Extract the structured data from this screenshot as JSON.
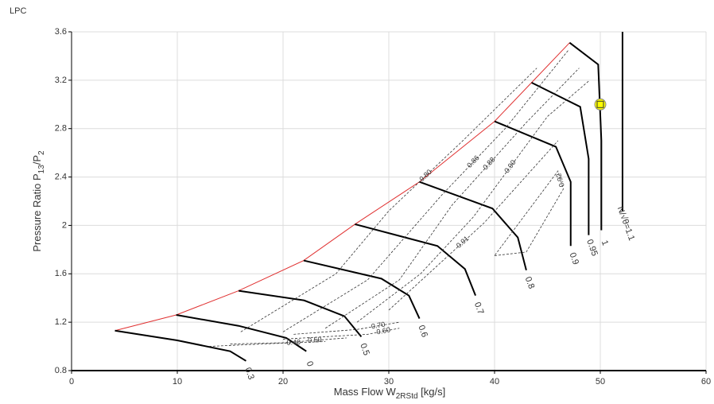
{
  "chart_data": {
    "type": "line",
    "title": "LPC",
    "x_label": [
      "Mass Flow W",
      "2RStd",
      " [kg/s]"
    ],
    "y_label": [
      "Pressure Ratio P",
      "13",
      "/P",
      "2"
    ],
    "xlim": [
      0,
      60
    ],
    "ylim": [
      0.8,
      3.6
    ],
    "xticks": [
      0,
      10,
      20,
      30,
      40,
      50,
      60
    ],
    "yticks": [
      0.8,
      1.2,
      1.6,
      2,
      2.4,
      2.8,
      3.2,
      3.6
    ],
    "grid": true,
    "series": [
      {
        "color": "#e03030",
        "style": "surge",
        "x": [
          4.1,
          9.9,
          15.8,
          21.95,
          26.8,
          32.9,
          40,
          43.5,
          47.1
        ],
        "values": [
          1.13,
          1.26,
          1.46,
          1.71,
          2.01,
          2.36,
          2.86,
          3.18,
          3.51
        ]
      },
      {
        "name": "0.3",
        "color": "#000000",
        "style": "speed",
        "x": [
          4.1,
          10,
          15,
          16.5
        ],
        "values": [
          1.13,
          1.05,
          0.96,
          0.88
        ]
      },
      {
        "name": "0",
        "color": "#000000",
        "style": "speed",
        "x": [
          9.9,
          15.8,
          20.3,
          22.2
        ],
        "values": [
          1.26,
          1.17,
          1.07,
          0.96
        ]
      },
      {
        "name": "0.5",
        "color": "#000000",
        "style": "speed",
        "x": [
          15.8,
          22,
          25.8,
          27.4
        ],
        "values": [
          1.46,
          1.38,
          1.25,
          1.08
        ]
      },
      {
        "name": "0.6",
        "color": "#000000",
        "style": "speed",
        "x": [
          21.95,
          29.3,
          31.9,
          32.9
        ],
        "values": [
          1.71,
          1.56,
          1.42,
          1.23
        ]
      },
      {
        "name": "0.7",
        "color": "#000000",
        "style": "speed",
        "x": [
          26.8,
          34.6,
          37.2,
          38.2
        ],
        "values": [
          2.01,
          1.83,
          1.64,
          1.42
        ]
      },
      {
        "name": "0.8",
        "color": "#000000",
        "style": "speed",
        "x": [
          32.9,
          39.8,
          42.2,
          43
        ],
        "values": [
          2.36,
          2.14,
          1.9,
          1.63
        ]
      },
      {
        "name": "0.9",
        "color": "#000000",
        "style": "speed",
        "x": [
          40,
          45.8,
          47.2,
          47.2
        ],
        "values": [
          2.86,
          2.65,
          2.36,
          1.83
        ]
      },
      {
        "name": "0.95",
        "color": "#000000",
        "style": "speed",
        "x": [
          43.5,
          48.1,
          48.9,
          48.9
        ],
        "values": [
          3.18,
          2.98,
          2.55,
          1.92
        ]
      },
      {
        "name": "1",
        "color": "#000000",
        "style": "speed",
        "x": [
          47.1,
          49.8,
          50.1,
          50.1
        ],
        "values": [
          3.51,
          3.33,
          2.7,
          1.96
        ]
      },
      {
        "name": "N/√θ=1.1",
        "color": "#000000",
        "style": "speed",
        "x": [
          52.1,
          52.1
        ],
        "values": [
          3.6,
          2.12
        ]
      },
      {
        "name": "0.80",
        "color": "#333333",
        "style": "contour",
        "x": [
          16,
          25,
          30,
          37,
          44
        ],
        "values": [
          1.12,
          1.6,
          2.12,
          2.7,
          3.3
        ]
      },
      {
        "name": "0.86",
        "color": "#333333",
        "style": "contour",
        "x": [
          20,
          28,
          35,
          41,
          47
        ],
        "values": [
          1.12,
          1.55,
          2.25,
          2.8,
          3.45
        ]
      },
      {
        "name": "0.88",
        "color": "#333333",
        "style": "contour",
        "x": [
          24,
          31,
          36,
          43,
          48
        ],
        "values": [
          1.15,
          1.55,
          2.17,
          2.85,
          3.3
        ]
      },
      {
        "name": "0.90",
        "color": "#333333",
        "style": "contour",
        "x": [
          27,
          33,
          38,
          45,
          49
        ],
        "values": [
          1.2,
          1.6,
          2.07,
          2.9,
          3.2
        ]
      },
      {
        "name": "0.91",
        "color": "#333333",
        "style": "contour",
        "x": [
          30,
          35,
          39,
          46
        ],
        "values": [
          1.3,
          1.7,
          2.02,
          2.7
        ]
      },
      {
        "name": "0.92",
        "color": "#333333",
        "style": "contour",
        "x": [
          40,
          43,
          46.5,
          46,
          43,
          40
        ],
        "values": [
          1.75,
          1.78,
          2.3,
          2.45,
          2.1,
          1.75
        ]
      },
      {
        "name": "0.70",
        "color": "#333333",
        "style": "contour",
        "x": [
          21,
          27,
          31
        ],
        "values": [
          1.1,
          1.14,
          1.2
        ]
      },
      {
        "name": "0.60",
        "color": "#333333",
        "style": "contour",
        "x": [
          20,
          28,
          31
        ],
        "values": [
          1.06,
          1.1,
          1.15
        ]
      },
      {
        "name": "0.50",
        "color": "#333333",
        "style": "contour",
        "x": [
          15,
          20,
          26
        ],
        "values": [
          1.02,
          1.03,
          1.07
        ]
      },
      {
        "name": "0.40",
        "color": "#333333",
        "style": "contour",
        "x": [
          13,
          18,
          24
        ],
        "values": [
          1.0,
          1.02,
          1.04
        ]
      }
    ],
    "points": {
      "color": "#ffff00",
      "x": [
        50
      ],
      "values": [
        3.0
      ]
    }
  }
}
